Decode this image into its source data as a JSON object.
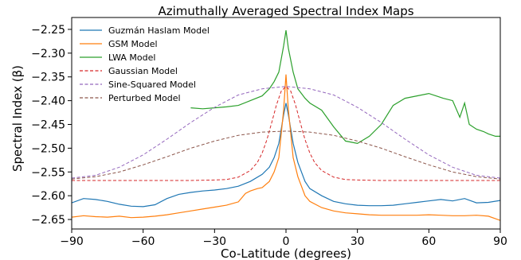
{
  "chart_data": {
    "type": "line",
    "title": "Azimuthally Averaged Spectral Index Maps",
    "xlabel": "Co-Latitude (degrees)",
    "ylabel": "Spectral Index (β)",
    "xlim": [
      -90,
      90
    ],
    "ylim": [
      -2.67,
      -2.225
    ],
    "xticks": [
      -90,
      -60,
      -30,
      0,
      30,
      60,
      90
    ],
    "yticks": [
      -2.65,
      -2.6,
      -2.55,
      -2.5,
      -2.45,
      -2.4,
      -2.35,
      -2.3,
      -2.25
    ],
    "xtick_labels": [
      "−90",
      "−60",
      "−30",
      "0",
      "30",
      "60",
      "90"
    ],
    "ytick_labels": [
      "−2.65",
      "−2.60",
      "−2.55",
      "−2.50",
      "−2.45",
      "−2.40",
      "−2.35",
      "−2.30",
      "−2.25"
    ],
    "grid": false,
    "legend_position": "upper-left",
    "series": [
      {
        "name": "Guzmán Haslam Model",
        "color": "#1f77b4",
        "style": "solid",
        "x": [
          -90,
          -85,
          -80,
          -75,
          -70,
          -65,
          -60,
          -55,
          -50,
          -45,
          -40,
          -35,
          -30,
          -25,
          -20,
          -15,
          -10,
          -7,
          -5,
          -3,
          -1,
          0,
          1,
          3,
          5,
          8,
          10,
          15,
          20,
          25,
          30,
          35,
          40,
          45,
          50,
          55,
          60,
          65,
          70,
          75,
          80,
          85,
          90
        ],
        "y": [
          -2.615,
          -2.606,
          -2.608,
          -2.612,
          -2.618,
          -2.622,
          -2.623,
          -2.619,
          -2.606,
          -2.597,
          -2.593,
          -2.59,
          -2.588,
          -2.585,
          -2.58,
          -2.57,
          -2.555,
          -2.54,
          -2.52,
          -2.49,
          -2.43,
          -2.405,
          -2.43,
          -2.49,
          -2.53,
          -2.57,
          -2.585,
          -2.6,
          -2.612,
          -2.617,
          -2.62,
          -2.621,
          -2.621,
          -2.62,
          -2.617,
          -2.614,
          -2.611,
          -2.608,
          -2.611,
          -2.606,
          -2.615,
          -2.614,
          -2.61
        ]
      },
      {
        "name": "GSM Model",
        "color": "#ff7f0e",
        "style": "solid",
        "x": [
          -90,
          -85,
          -80,
          -75,
          -70,
          -65,
          -60,
          -55,
          -50,
          -45,
          -40,
          -35,
          -30,
          -25,
          -20,
          -17,
          -15,
          -12,
          -10,
          -7,
          -5,
          -3,
          -1,
          0,
          1,
          3,
          5,
          8,
          10,
          15,
          20,
          25,
          30,
          35,
          40,
          45,
          50,
          55,
          60,
          65,
          70,
          75,
          80,
          85,
          90
        ],
        "y": [
          -2.645,
          -2.642,
          -2.644,
          -2.645,
          -2.643,
          -2.646,
          -2.645,
          -2.643,
          -2.64,
          -2.636,
          -2.632,
          -2.628,
          -2.624,
          -2.62,
          -2.613,
          -2.595,
          -2.59,
          -2.585,
          -2.583,
          -2.57,
          -2.55,
          -2.52,
          -2.42,
          -2.345,
          -2.42,
          -2.52,
          -2.56,
          -2.6,
          -2.612,
          -2.625,
          -2.632,
          -2.636,
          -2.638,
          -2.64,
          -2.641,
          -2.641,
          -2.641,
          -2.641,
          -2.64,
          -2.641,
          -2.642,
          -2.642,
          -2.641,
          -2.643,
          -2.652
        ]
      },
      {
        "name": "LWA Model",
        "color": "#2ca02c",
        "style": "solid",
        "x": [
          -40,
          -35,
          -30,
          -25,
          -20,
          -15,
          -10,
          -7,
          -5,
          -3,
          -1,
          0,
          1,
          3,
          5,
          8,
          10,
          15,
          20,
          25,
          30,
          35,
          40,
          45,
          50,
          55,
          60,
          63,
          66,
          70,
          73,
          75,
          77,
          80,
          83,
          85,
          88,
          90
        ],
        "y": [
          -2.415,
          -2.417,
          -2.415,
          -2.413,
          -2.41,
          -2.4,
          -2.39,
          -2.375,
          -2.36,
          -2.34,
          -2.285,
          -2.252,
          -2.29,
          -2.34,
          -2.375,
          -2.395,
          -2.405,
          -2.42,
          -2.455,
          -2.485,
          -2.49,
          -2.475,
          -2.45,
          -2.41,
          -2.395,
          -2.39,
          -2.385,
          -2.39,
          -2.395,
          -2.4,
          -2.435,
          -2.405,
          -2.45,
          -2.46,
          -2.465,
          -2.47,
          -2.475,
          -2.475
        ]
      },
      {
        "name": "Gaussian Model",
        "color": "#d62728",
        "style": "dashed",
        "x": [
          -90,
          -60,
          -40,
          -30,
          -25,
          -20,
          -15,
          -12,
          -10,
          -8,
          -6,
          -4,
          -2,
          0,
          2,
          4,
          6,
          8,
          10,
          12,
          15,
          20,
          25,
          30,
          40,
          60,
          90
        ],
        "y": [
          -2.568,
          -2.568,
          -2.568,
          -2.567,
          -2.566,
          -2.561,
          -2.547,
          -2.53,
          -2.51,
          -2.482,
          -2.446,
          -2.409,
          -2.38,
          -2.37,
          -2.38,
          -2.409,
          -2.446,
          -2.482,
          -2.51,
          -2.53,
          -2.547,
          -2.561,
          -2.566,
          -2.567,
          -2.568,
          -2.568,
          -2.568
        ]
      },
      {
        "name": "Sine-Squared Model",
        "color": "#9467bd",
        "style": "dashed",
        "x": [
          -90,
          -80,
          -70,
          -60,
          -50,
          -40,
          -30,
          -20,
          -10,
          0,
          10,
          20,
          30,
          40,
          50,
          60,
          70,
          80,
          90
        ],
        "y": [
          -2.563,
          -2.557,
          -2.54,
          -2.514,
          -2.481,
          -2.446,
          -2.414,
          -2.388,
          -2.375,
          -2.37,
          -2.375,
          -2.388,
          -2.414,
          -2.446,
          -2.481,
          -2.514,
          -2.54,
          -2.557,
          -2.563
        ]
      },
      {
        "name": "Perturbed Model",
        "color": "#8c564b",
        "style": "dashed",
        "x": [
          -90,
          -80,
          -70,
          -60,
          -50,
          -40,
          -30,
          -20,
          -10,
          0,
          10,
          20,
          30,
          40,
          50,
          60,
          70,
          80,
          90
        ],
        "y": [
          -2.565,
          -2.56,
          -2.55,
          -2.535,
          -2.518,
          -2.5,
          -2.485,
          -2.473,
          -2.466,
          -2.464,
          -2.466,
          -2.473,
          -2.485,
          -2.5,
          -2.518,
          -2.535,
          -2.55,
          -2.56,
          -2.565
        ]
      }
    ]
  }
}
